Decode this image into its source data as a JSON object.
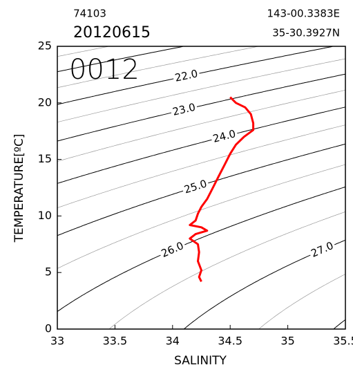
{
  "chart_data": {
    "type": "line",
    "header": {
      "station": "74103",
      "date": "20120615",
      "longitude": "143-00.3383E",
      "latitude": "35-30.3927N",
      "cast": "0012"
    },
    "xlabel": "SALINITY",
    "ylabel": "TEMPERATURE[ºC]",
    "xlim": [
      33,
      35.5
    ],
    "ylim": [
      0,
      25
    ],
    "xticks": [
      33,
      33.5,
      34,
      34.5,
      35,
      35.5
    ],
    "yticks": [
      0,
      5,
      10,
      15,
      20,
      25
    ],
    "contours": {
      "levels": [
        20.5,
        21,
        21.5,
        22,
        22.5,
        23,
        23.5,
        24,
        24.5,
        25,
        25.5,
        26,
        26.5,
        27,
        27.5,
        28
      ],
      "labels": [
        {
          "value": 22,
          "label": "22.0"
        },
        {
          "value": 23,
          "label": "23.0"
        },
        {
          "value": 24,
          "label": "24.0"
        },
        {
          "value": 25,
          "label": "25.0"
        },
        {
          "value": 26,
          "label": "26.0"
        },
        {
          "value": 27,
          "label": "27.0"
        }
      ]
    },
    "series": [
      {
        "color": "#ff0000",
        "x": [
          34.5,
          34.55,
          34.63,
          34.68,
          34.7,
          34.7,
          34.62,
          34.55,
          34.5,
          34.45,
          34.4,
          34.35,
          34.3,
          34.25,
          34.22,
          34.2,
          34.15,
          34.25,
          34.3,
          34.2,
          34.15,
          34.22,
          34.23,
          34.22,
          34.25,
          34.23,
          34.25
        ],
        "values": [
          20.5,
          20.0,
          19.6,
          19.0,
          18.2,
          17.6,
          17.0,
          16.3,
          15.5,
          14.5,
          13.5,
          12.5,
          11.5,
          10.8,
          10.2,
          9.6,
          9.2,
          9.0,
          8.7,
          8.4,
          8.0,
          7.5,
          6.8,
          6.0,
          5.2,
          4.6,
          4.2
        ]
      }
    ]
  }
}
